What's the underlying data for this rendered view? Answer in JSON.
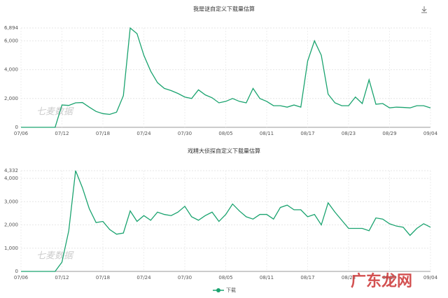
{
  "chart_data": [
    {
      "type": "line",
      "title": "我是谜自定义下载量估算",
      "watermark": "七麦数据",
      "color": "#1aa36f",
      "grid": true,
      "categories": [
        "07/06",
        null,
        null,
        null,
        null,
        null,
        "07/12",
        null,
        null,
        null,
        null,
        null,
        "07/18",
        null,
        null,
        null,
        null,
        null,
        "07/24",
        null,
        null,
        null,
        null,
        null,
        "07/30",
        null,
        null,
        null,
        null,
        null,
        "08/05",
        null,
        null,
        null,
        null,
        null,
        "08/11",
        null,
        null,
        null,
        null,
        null,
        "08/17",
        null,
        null,
        null,
        null,
        null,
        "08/23",
        null,
        null,
        null,
        null,
        null,
        "08/29",
        null,
        null,
        null,
        null,
        null,
        "09/04"
      ],
      "values": [
        0,
        0,
        0,
        0,
        0,
        0,
        1550,
        1520,
        1700,
        1720,
        1400,
        1100,
        950,
        900,
        1050,
        2200,
        6894,
        6500,
        5000,
        3900,
        3100,
        2700,
        2550,
        2350,
        2100,
        2000,
        2600,
        2250,
        2050,
        1700,
        1800,
        2000,
        1800,
        1700,
        2700,
        2000,
        1800,
        1500,
        1500,
        1400,
        1550,
        1400,
        4600,
        6000,
        5000,
        2300,
        1700,
        1500,
        1500,
        2100,
        1650,
        3300,
        1600,
        1650,
        1350,
        1400,
        1380,
        1350,
        1500,
        1500,
        1350
      ],
      "ylim": [
        0,
        6894
      ],
      "yticks": [
        0,
        {
          "value": 2000,
          "label": "2,000"
        },
        {
          "value": 4000,
          "label": "4,000"
        },
        {
          "value": 6000,
          "label": "6,000"
        },
        {
          "value": 6894,
          "label": "6,894"
        }
      ]
    },
    {
      "type": "line",
      "title": "戏精大侦探自定义下载量估算",
      "watermark": "七麦数据",
      "grid": true,
      "legend": "bottom",
      "categories": [
        "07/06",
        null,
        null,
        null,
        null,
        null,
        "07/12",
        null,
        null,
        null,
        null,
        null,
        "07/18",
        null,
        null,
        null,
        null,
        null,
        "07/24",
        null,
        null,
        null,
        null,
        null,
        "07/30",
        null,
        null,
        null,
        null,
        null,
        "08/05",
        null,
        null,
        null,
        null,
        null,
        "08/11",
        null,
        null,
        null,
        null,
        null,
        "08/17",
        null,
        null,
        null,
        null,
        null,
        "08/23",
        null,
        null,
        null,
        null,
        null,
        "08/29",
        null,
        null,
        null,
        null,
        null,
        "09/04"
      ],
      "series": [
        {
          "name": "下载",
          "color": "#1aa36f",
          "values": [
            0,
            0,
            0,
            0,
            0,
            0,
            400,
            1750,
            4332,
            3600,
            2700,
            2100,
            2150,
            1800,
            1600,
            1650,
            2600,
            2150,
            2400,
            2200,
            2550,
            2450,
            2400,
            2550,
            2800,
            2350,
            2200,
            2400,
            2550,
            2150,
            2450,
            2900,
            2600,
            2350,
            2250,
            2450,
            2450,
            2250,
            2750,
            2850,
            2650,
            2650,
            2350,
            2450,
            2000,
            2950,
            2550,
            2200,
            1850,
            1850,
            1850,
            1750,
            2300,
            2250,
            2050,
            1950,
            1900,
            1550,
            1850,
            2050,
            1900
          ]
        }
      ],
      "ylim": [
        0,
        4332
      ],
      "yticks": [
        0,
        {
          "value": 1000,
          "label": "1,000"
        },
        {
          "value": 2000,
          "label": "2,000"
        },
        {
          "value": 3000,
          "label": "3,000"
        },
        {
          "value": 4000,
          "label": "4,000"
        },
        {
          "value": 4332,
          "label": "4,332"
        }
      ]
    }
  ],
  "overlay_logo": "广东龙网"
}
